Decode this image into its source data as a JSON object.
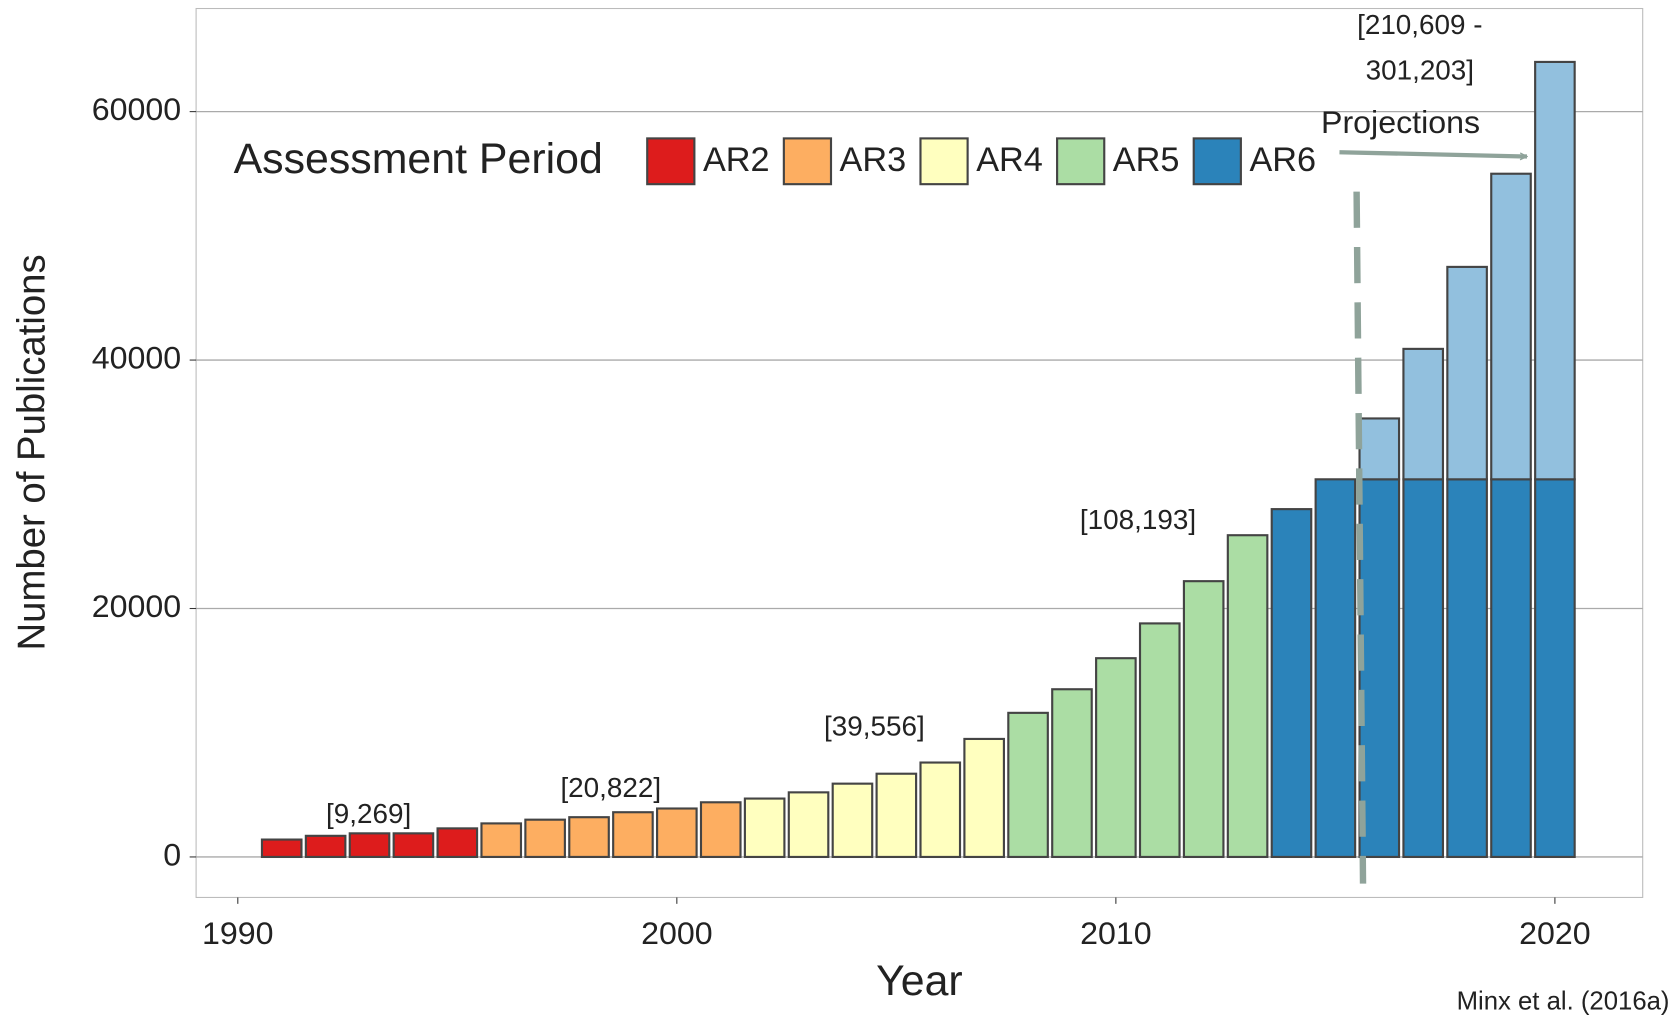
{
  "chart_data": {
    "type": "bar",
    "xlabel": "Year",
    "ylabel": "Number of Publications",
    "legend_title": "Assessment Period",
    "legend": "top-left",
    "grid": true,
    "x": [
      1991,
      1992,
      1993,
      1994,
      1995,
      1996,
      1997,
      1998,
      1999,
      2000,
      2001,
      2002,
      2003,
      2004,
      2005,
      2006,
      2007,
      2008,
      2009,
      2010,
      2011,
      2012,
      2013,
      2014,
      2015,
      2016,
      2017,
      2018,
      2019,
      2020
    ],
    "series": [
      {
        "name": "AR2",
        "color": "#dd1c1c",
        "values": [
          1400,
          1700,
          1900,
          1900,
          2300,
          null,
          null,
          null,
          null,
          null,
          null,
          null,
          null,
          null,
          null,
          null,
          null,
          null,
          null,
          null,
          null,
          null,
          null,
          null,
          null,
          null,
          null,
          null,
          null,
          null
        ]
      },
      {
        "name": "AR3",
        "color": "#fdae61",
        "values": [
          null,
          null,
          null,
          null,
          null,
          2700,
          3000,
          3200,
          3600,
          3900,
          4400,
          null,
          null,
          null,
          null,
          null,
          null,
          null,
          null,
          null,
          null,
          null,
          null,
          null,
          null,
          null,
          null,
          null,
          null,
          null
        ]
      },
      {
        "name": "AR4",
        "color": "#ffffbf",
        "values": [
          null,
          null,
          null,
          null,
          null,
          null,
          null,
          null,
          null,
          null,
          null,
          4700,
          5200,
          5900,
          6700,
          7600,
          9500,
          null,
          null,
          null,
          null,
          null,
          null,
          null,
          null,
          null,
          null,
          null,
          null,
          null
        ]
      },
      {
        "name": "AR5",
        "color": "#abdda4",
        "values": [
          null,
          null,
          null,
          null,
          null,
          null,
          null,
          null,
          null,
          null,
          null,
          null,
          null,
          null,
          null,
          null,
          null,
          11600,
          13500,
          16000,
          18800,
          22200,
          25900,
          null,
          null,
          null,
          null,
          null,
          null,
          null
        ]
      },
      {
        "name": "AR6",
        "color": "#2b83ba",
        "values": [
          null,
          null,
          null,
          null,
          null,
          null,
          null,
          null,
          null,
          null,
          null,
          null,
          null,
          null,
          null,
          null,
          null,
          null,
          null,
          null,
          null,
          null,
          null,
          28000,
          30400,
          30400,
          30400,
          30400,
          30400,
          30400
        ]
      }
    ],
    "projections": {
      "label": "Projections",
      "color": "#92c0de",
      "values": [
        null,
        null,
        null,
        null,
        null,
        null,
        null,
        null,
        null,
        null,
        null,
        null,
        null,
        null,
        null,
        null,
        null,
        null,
        null,
        null,
        null,
        null,
        null,
        null,
        null,
        4900,
        10500,
        17100,
        24600,
        33600
      ]
    },
    "annotations": [
      "[9,269]",
      "[20,822]",
      "[39,556]",
      "[108,193]",
      "[210,609 -",
      "301,203]"
    ],
    "source": "Minx et al. (2016a)",
    "xlim": [
      1989.05,
      2022
    ],
    "xticks": [
      1990,
      2000,
      2010,
      2020
    ],
    "ylim": [
      -3260,
      68300
    ],
    "yticks": [
      0,
      20000,
      40000,
      60000
    ]
  }
}
